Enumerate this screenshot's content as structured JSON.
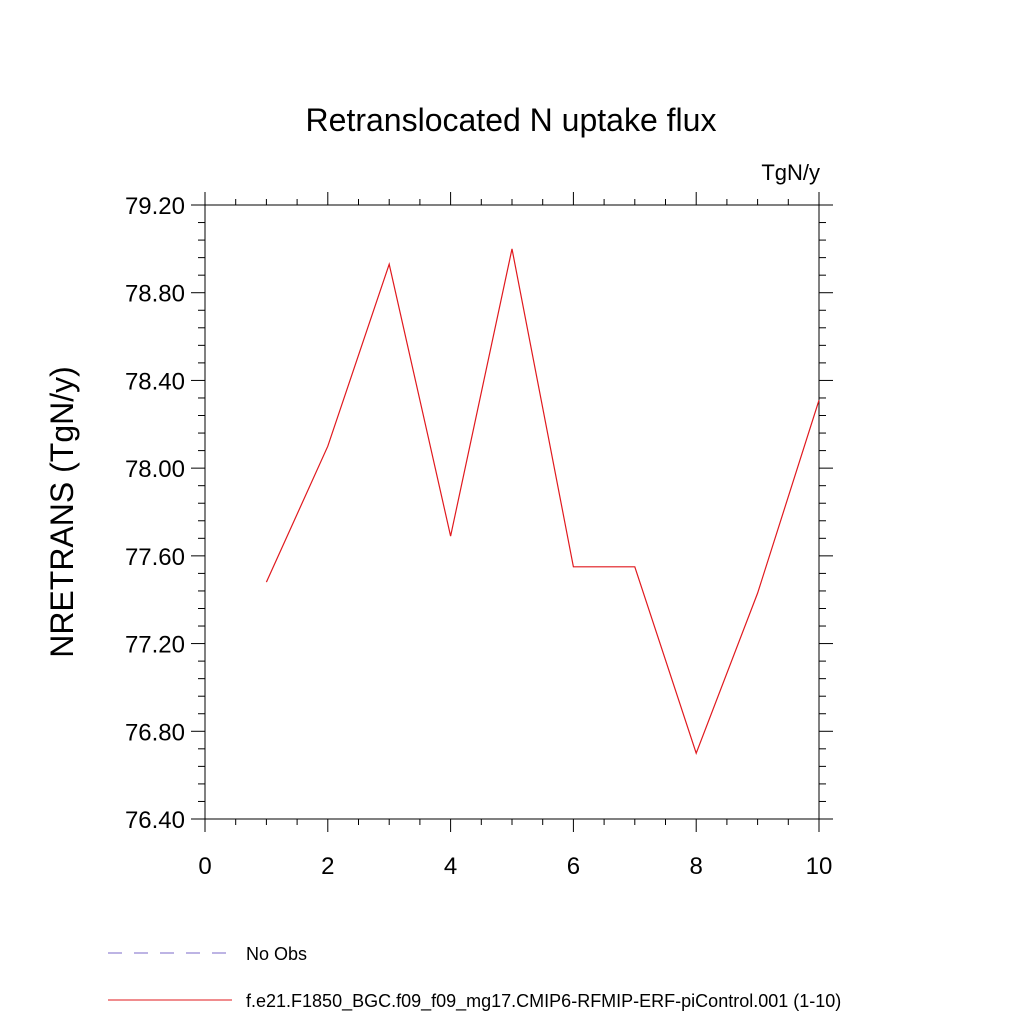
{
  "chart_data": {
    "type": "line",
    "title": "Retranslocated N uptake flux",
    "units_label": "TgN/y",
    "xlabel": "",
    "ylabel": "NRETRANS  (TgN/y)",
    "xlim": [
      0,
      10
    ],
    "ylim": [
      76.4,
      79.2
    ],
    "x_ticks": [
      "0",
      "2",
      "4",
      "6",
      "8",
      "10"
    ],
    "y_ticks": [
      "76.40",
      "76.80",
      "77.20",
      "77.60",
      "78.00",
      "78.40",
      "78.80",
      "79.20"
    ],
    "grid": false,
    "legend_position": "bottom",
    "series": [
      {
        "name": "No Obs",
        "color": "#7b68c8",
        "dash": "dashed",
        "x": [],
        "y": []
      },
      {
        "name": "f.e21.F1850_BGC.f09_f09_mg17.CMIP6-RFMIP-ERF-piControl.001 (1-10)",
        "color": "#e0191e",
        "dash": "solid",
        "x": [
          1,
          2,
          3,
          4,
          5,
          6,
          7,
          8,
          9,
          10
        ],
        "y": [
          77.48,
          78.1,
          78.93,
          77.69,
          79.0,
          77.55,
          77.55,
          76.7,
          77.43,
          78.31
        ]
      }
    ]
  }
}
